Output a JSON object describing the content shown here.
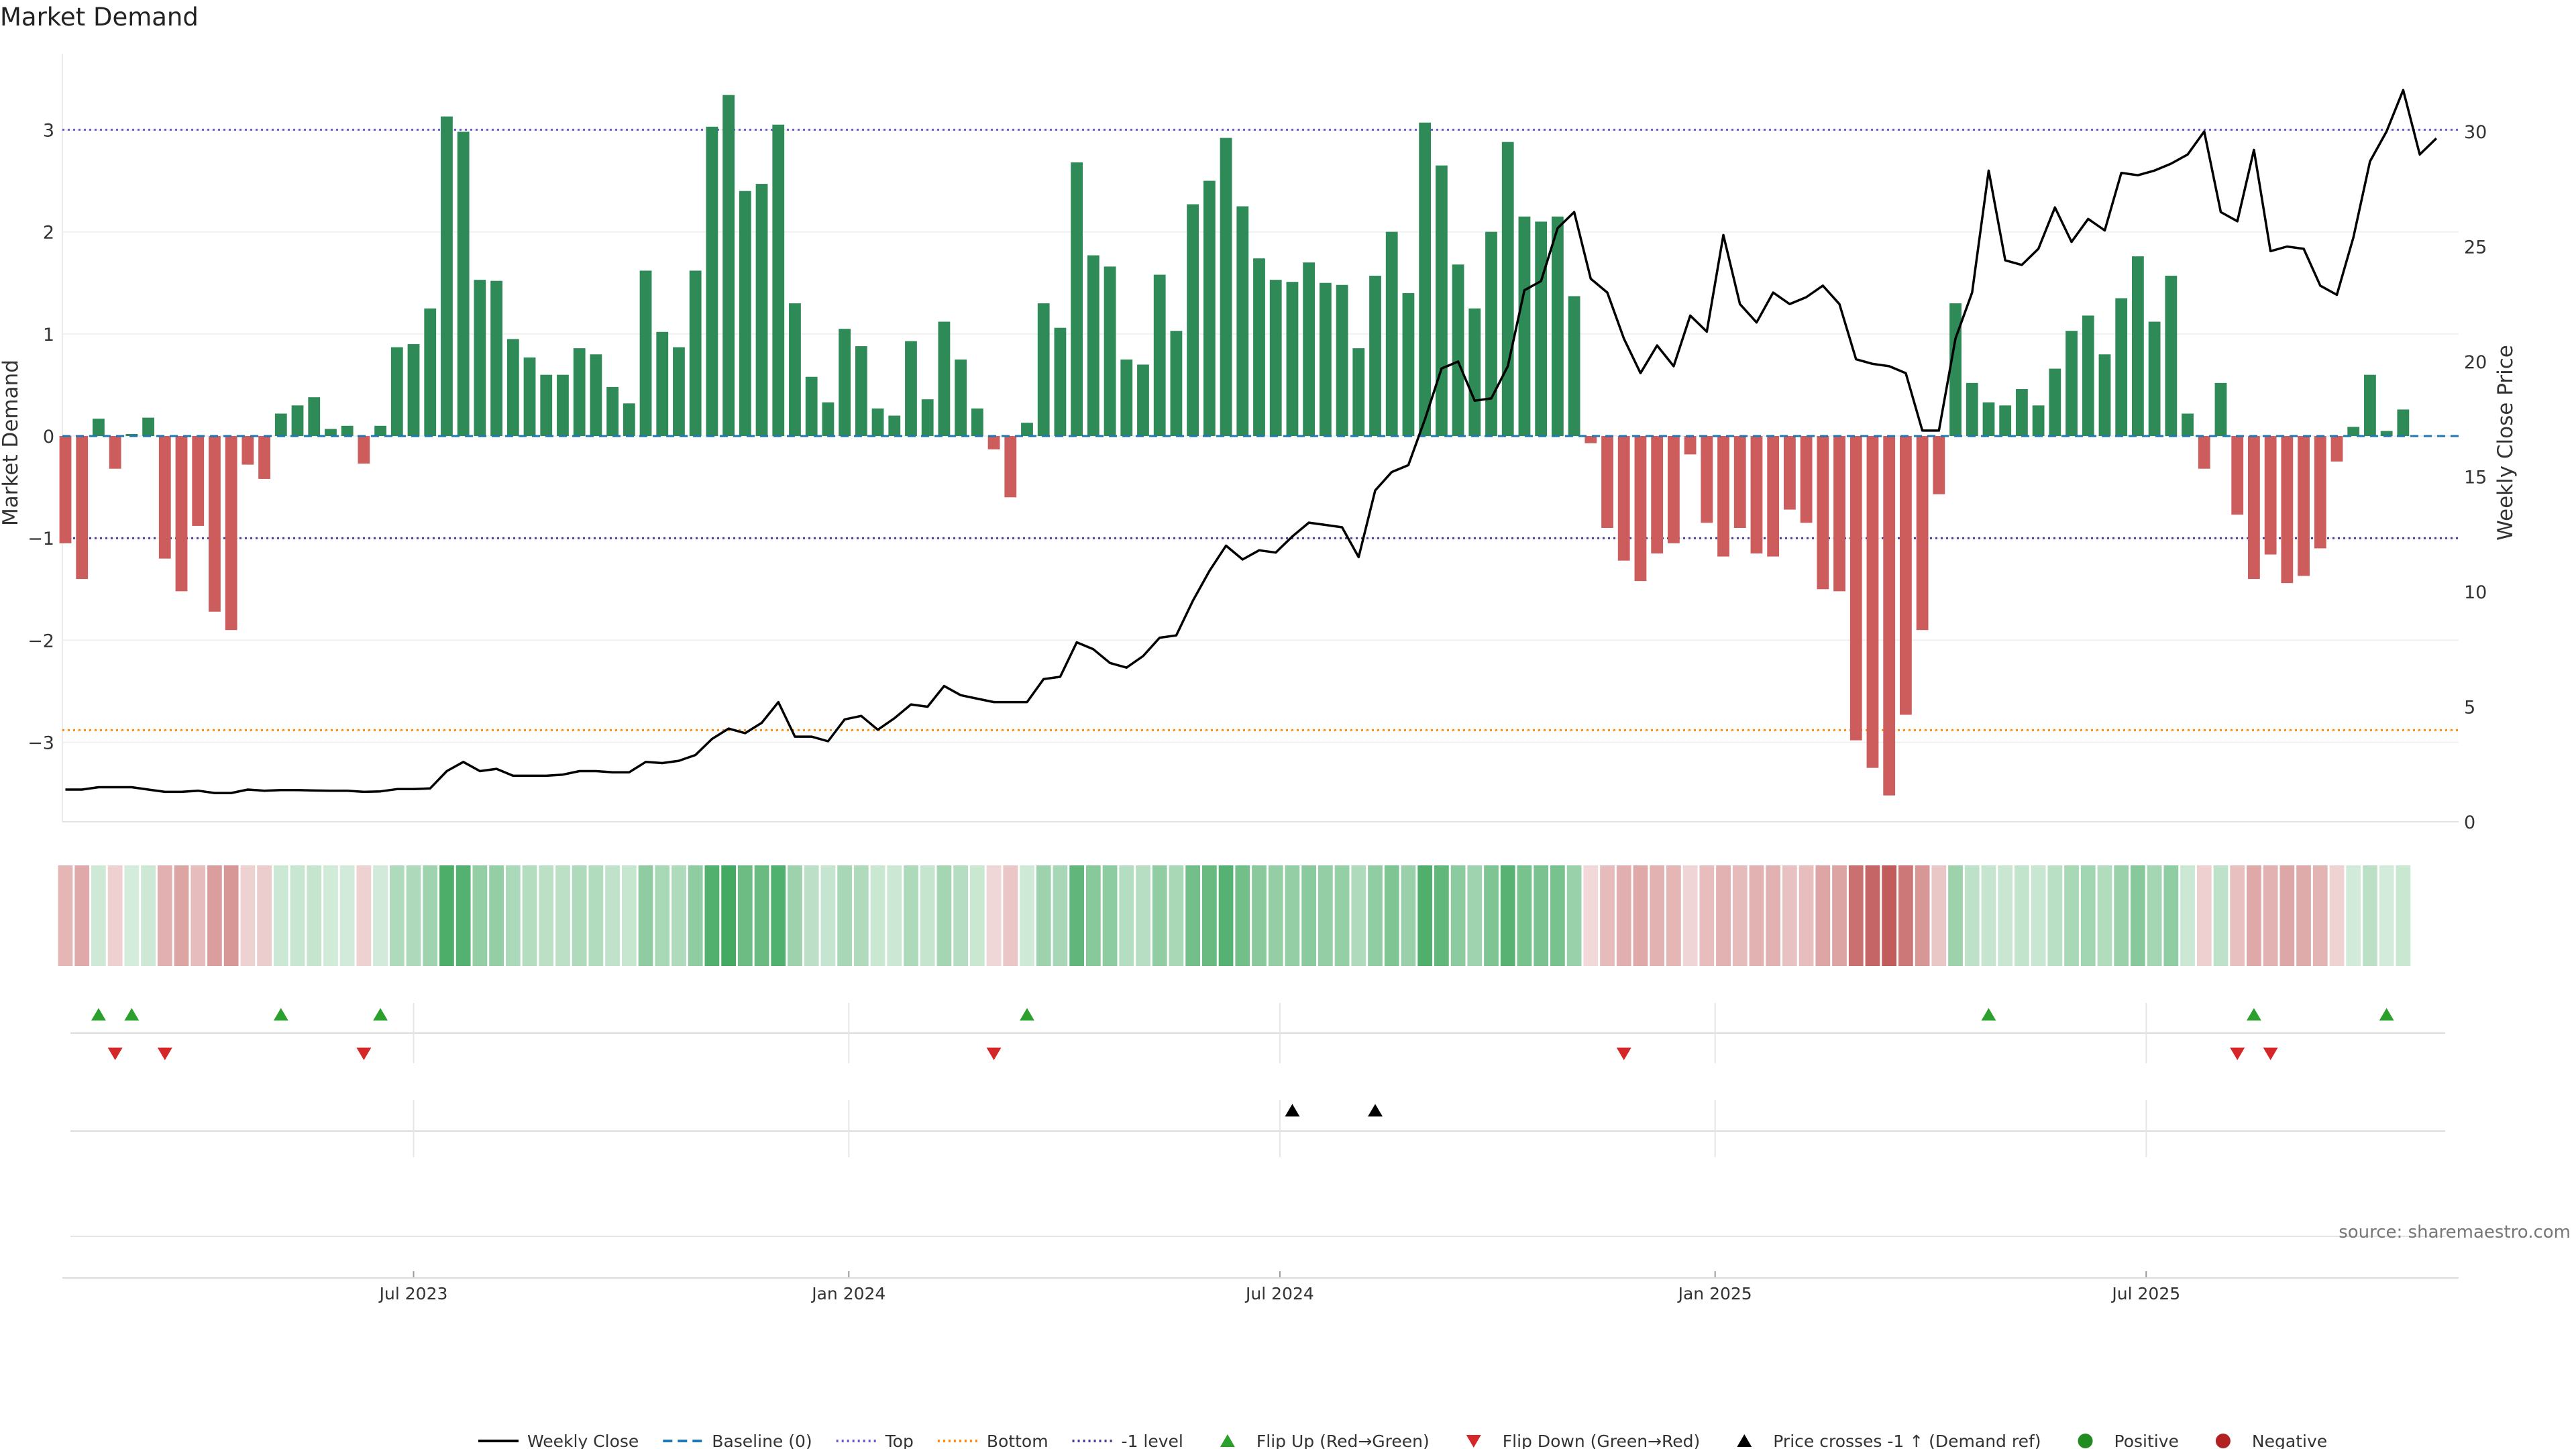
{
  "title": "Market Demand",
  "source": "source: sharemaestro.com",
  "chart_data": {
    "type": "bar",
    "title": "Market Demand",
    "ylabel": "Market Demand",
    "y2label": "Weekly Close Price",
    "ylim": [
      -3.8,
      3.75
    ],
    "y2lim": [
      0,
      33.6
    ],
    "yticks": [
      -3,
      -2,
      -1,
      0,
      1,
      2,
      3
    ],
    "y2ticks": [
      0,
      5,
      10,
      15,
      20,
      25,
      30
    ],
    "xticks": [
      {
        "label": "Jul 2023",
        "x": 21
      },
      {
        "label": "Jan 2024",
        "x": 47.25
      },
      {
        "label": "Jul 2024",
        "x": 73.25
      },
      {
        "label": "Jan 2025",
        "x": 99.5
      },
      {
        "label": "Jul 2025",
        "x": 125.5
      }
    ],
    "reference_lines": {
      "top": 3.0,
      "bottom": -2.88,
      "minus_one": -1.0,
      "baseline": 0
    },
    "demand": [
      -1.05,
      -1.4,
      0.17,
      -0.32,
      0.02,
      0.18,
      -1.2,
      -1.52,
      -0.88,
      -1.72,
      -1.9,
      -0.28,
      -0.42,
      0.22,
      0.3,
      0.38,
      0.07,
      0.1,
      -0.27,
      0.1,
      0.87,
      0.9,
      1.25,
      3.13,
      2.98,
      1.53,
      1.52,
      0.95,
      0.77,
      0.6,
      0.6,
      0.86,
      0.8,
      0.48,
      0.32,
      1.62,
      1.02,
      0.87,
      1.62,
      3.03,
      3.34,
      2.4,
      2.47,
      3.05,
      1.3,
      0.58,
      0.33,
      1.05,
      0.88,
      0.27,
      0.2,
      0.93,
      0.36,
      1.12,
      0.75,
      0.27,
      -0.13,
      -0.6,
      0.13,
      1.3,
      1.06,
      2.68,
      1.77,
      1.66,
      0.75,
      0.7,
      1.58,
      1.03,
      2.27,
      2.5,
      2.92,
      2.25,
      1.74,
      1.53,
      1.51,
      1.7,
      1.5,
      1.48,
      0.86,
      1.57,
      2.0,
      1.4,
      3.07,
      2.65,
      1.68,
      1.25,
      2.0,
      2.88,
      2.15,
      2.1,
      2.15,
      1.37,
      -0.07,
      -0.9,
      -1.22,
      -1.42,
      -1.15,
      -1.05,
      -0.18,
      -0.85,
      -1.18,
      -0.9,
      -1.15,
      -1.18,
      -0.72,
      -0.85,
      -1.5,
      -1.52,
      -2.98,
      -3.25,
      -3.52,
      -2.73,
      -1.9,
      -0.57,
      1.3,
      0.52,
      0.33,
      0.3,
      0.46,
      0.3,
      0.66,
      1.03,
      1.18,
      0.8,
      1.35,
      1.76,
      1.12,
      1.57,
      0.22,
      -0.32,
      0.52,
      -0.77,
      -1.4,
      -1.16,
      -1.44,
      -1.37,
      -1.1,
      -0.25,
      0.09,
      0.6,
      0.05,
      0.26
    ],
    "weekly_close": [
      1.4,
      1.4,
      1.5,
      1.5,
      1.5,
      1.4,
      1.3,
      1.3,
      1.35,
      1.25,
      1.25,
      1.4,
      1.35,
      1.38,
      1.38,
      1.36,
      1.35,
      1.35,
      1.3,
      1.32,
      1.42,
      1.42,
      1.45,
      2.2,
      2.6,
      2.2,
      2.3,
      2.0,
      2.0,
      2.0,
      2.05,
      2.2,
      2.2,
      2.15,
      2.15,
      2.6,
      2.55,
      2.65,
      2.9,
      3.6,
      4.05,
      3.85,
      4.3,
      5.2,
      3.7,
      3.7,
      3.5,
      4.45,
      4.6,
      4.0,
      4.5,
      5.1,
      5.0,
      5.9,
      5.5,
      5.35,
      5.2,
      5.2,
      5.2,
      6.2,
      6.3,
      7.8,
      7.5,
      6.9,
      6.7,
      7.2,
      8.0,
      8.1,
      9.6,
      10.9,
      12.0,
      11.4,
      11.8,
      11.7,
      12.4,
      13.0,
      12.9,
      12.8,
      11.5,
      14.4,
      15.2,
      15.5,
      17.5,
      19.7,
      20.0,
      18.3,
      18.4,
      19.8,
      23.1,
      23.5,
      25.8,
      26.5,
      23.6,
      23.0,
      21.0,
      19.5,
      20.7,
      19.8,
      22.0,
      21.3,
      25.5,
      22.5,
      21.7,
      23.0,
      22.5,
      22.8,
      23.3,
      22.5,
      20.1,
      19.9,
      19.8,
      19.5,
      17.0,
      17.0,
      21.0,
      23.0,
      28.3,
      24.4,
      24.2,
      24.9,
      26.7,
      25.2,
      26.2,
      25.7,
      28.2,
      28.1,
      28.3,
      28.6,
      29.0,
      30.0,
      26.5,
      26.1,
      29.2,
      24.8,
      25.0,
      24.9,
      23.3,
      22.9,
      25.4,
      28.7,
      30.0,
      31.8,
      29.0,
      29.7
    ],
    "flip_up_x": [
      2,
      4,
      13,
      19,
      58,
      116,
      132,
      140
    ],
    "flip_down_x": [
      3,
      6,
      18,
      56,
      94,
      131,
      133
    ],
    "price_cross_x": [
      74,
      79
    ],
    "colors": {
      "positive_bar": "#2e8b57",
      "negative_bar": "#cd5c5c",
      "close_line": "#000000",
      "top_line": "#6a5acd",
      "bottom_line": "#ff8c00",
      "minus_one_line": "#483d8b",
      "baseline_line": "#1f77b4",
      "flip_up": "#2ca02c",
      "flip_down": "#d62728",
      "price_cross": "#000000",
      "positive_dot": "#228b22",
      "negative_dot": "#b22222"
    }
  },
  "legend": [
    {
      "label": "Weekly Close",
      "kind": "line",
      "color": "#000000"
    },
    {
      "label": "Baseline (0)",
      "kind": "dash",
      "color": "#1f77b4"
    },
    {
      "label": "Top",
      "kind": "dot",
      "color": "#6a5acd"
    },
    {
      "label": "Bottom",
      "kind": "dot",
      "color": "#ff8c00"
    },
    {
      "label": "-1 level",
      "kind": "dot",
      "color": "#483d8b"
    },
    {
      "label": "Flip Up (Red→Green)",
      "kind": "tri-up",
      "color": "#2ca02c"
    },
    {
      "label": "Flip Down (Green→Red)",
      "kind": "tri-down",
      "color": "#d62728"
    },
    {
      "label": "Price crosses -1 ↑ (Demand ref)",
      "kind": "tri-up",
      "color": "#000000"
    },
    {
      "label": "Positive",
      "kind": "circle",
      "color": "#228b22"
    },
    {
      "label": "Negative",
      "kind": "circle",
      "color": "#b22222"
    }
  ]
}
